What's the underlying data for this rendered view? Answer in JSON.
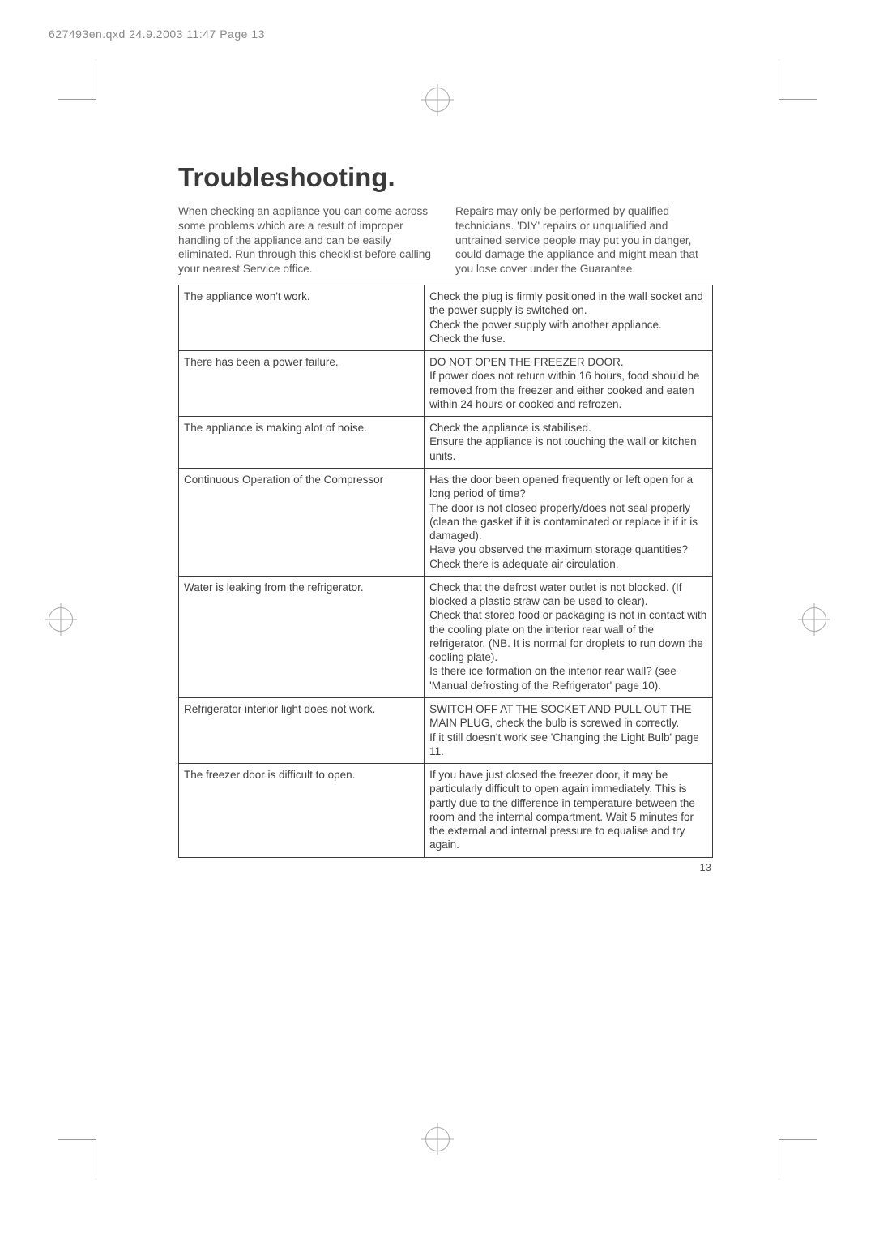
{
  "header": "627493en.qxd  24.9.2003  11:47  Page 13",
  "title": "Troubleshooting.",
  "intro_left": "When checking an appliance you can come across some problems which are a result of improper handling of the appliance and can be easily eliminated. Run through this checklist before calling your nearest Service office.",
  "intro_right": "Repairs may only be performed by qualified technicians.  'DIY' repairs or unqualified and untrained service people may put you in danger, could damage the appliance and might mean that you lose cover under the Guarantee.",
  "rows": [
    {
      "problem": "The appliance won't work.",
      "solution": "Check the plug is firmly positioned in the wall socket and the power supply is switched on.\nCheck the power supply with another appliance.\nCheck the fuse."
    },
    {
      "problem": "There has been a power failure.",
      "solution": "DO NOT OPEN THE FREEZER DOOR.\nIf power does not return within 16 hours, food should be removed from the freezer and either cooked and eaten within 24 hours or cooked and refrozen."
    },
    {
      "problem": "The appliance is making alot of noise.",
      "solution": "Check the appliance is stabilised.\nEnsure the appliance is not touching the wall or kitchen units."
    },
    {
      "problem": "Continuous Operation of the Compressor",
      "solution": "Has the door been opened frequently or left open for a long period of time?\nThe door is not closed properly/does not seal properly (clean the gasket if it is contaminated or replace it if it is damaged).\nHave you observed the maximum storage quantities?\nCheck there is adequate air circulation."
    },
    {
      "problem": "Water is leaking from the refrigerator.",
      "solution": "Check that the defrost water outlet is not blocked. (If blocked a plastic straw can be used to clear).\nCheck that stored food or packaging is not in contact with the cooling plate on the interior rear wall of the refrigerator. (NB. It is normal for droplets to run down the cooling plate).\nIs there ice formation on the interior rear wall? (see 'Manual defrosting of the Refrigerator' page 10)."
    },
    {
      "problem": "Refrigerator interior light does not work.",
      "solution": "SWITCH OFF AT THE SOCKET AND PULL OUT THE MAIN PLUG, check the bulb is screwed in correctly.\nIf it still doesn't work see 'Changing the Light Bulb' page 11."
    },
    {
      "problem": "The freezer door is difficult to open.",
      "solution": "If you have just closed the freezer door, it may be particularly difficult to open again immediately. This is partly due to the difference in temperature between the room and the internal compartment. Wait 5 minutes for the external and internal pressure to equalise and try again."
    }
  ],
  "page_number": "13"
}
